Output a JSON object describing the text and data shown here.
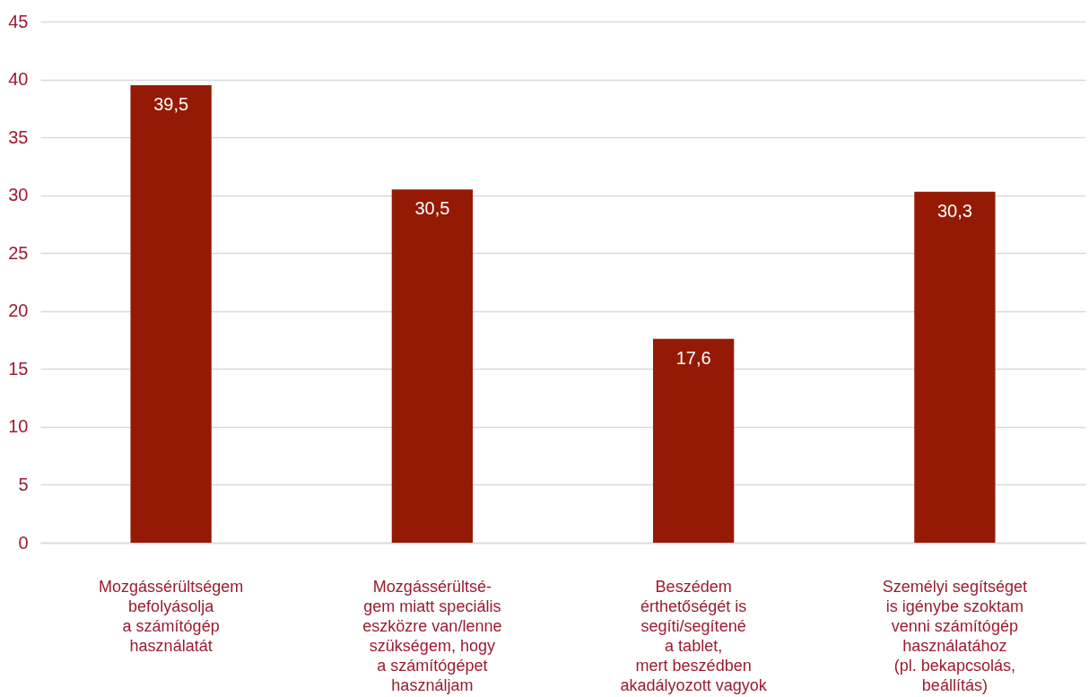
{
  "chart_data": {
    "type": "bar",
    "categories": [
      "Mozgássérültségem\nbefolyásolja\na számítógép\nhasználatát",
      "Mozgássérültsé-\ngem miatt speciális\neszközre van/lenne\nszükségem, hogy\na számítógépet\nhasználjam",
      "Beszédem\nérthetőségét is\nsegíti/segítené\na tablet,\nmert beszédben\nakadályozott vagyok",
      "Személyi segítséget\nis igénybe szoktam\nvenni számítógép\nhasználatához\n(pl. bekapcsolás,\nbeállítás)"
    ],
    "values": [
      39.5,
      30.5,
      17.6,
      30.3
    ],
    "value_labels": [
      "39,5",
      "30,5",
      "17,6",
      "30,3"
    ],
    "color": "#951a05",
    "ylim": [
      0,
      45
    ],
    "yticks": [
      0,
      5,
      10,
      15,
      20,
      25,
      30,
      35,
      40,
      45
    ],
    "grid": "y"
  }
}
